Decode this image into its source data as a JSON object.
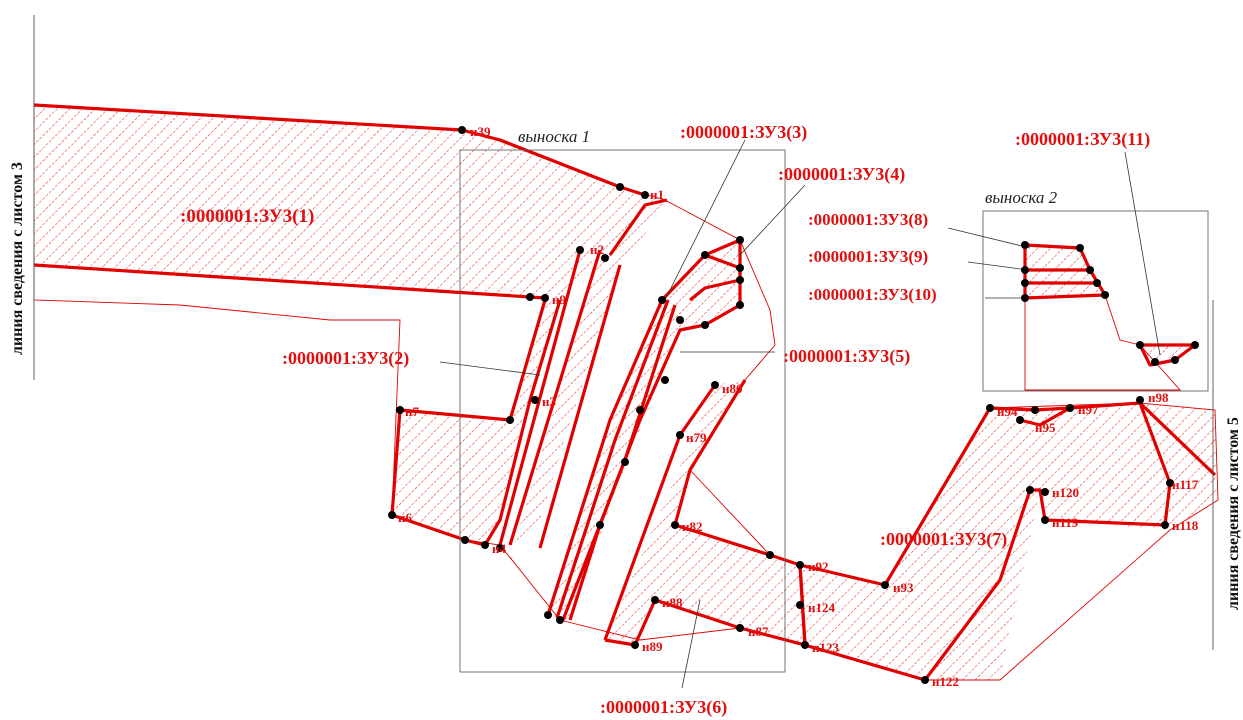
{
  "map": {
    "plots": {
      "zu1": ":0000001:ЗУ3(1)",
      "zu2": ":0000001:ЗУ3(2)",
      "zu3": ":0000001:ЗУ3(3)",
      "zu4": ":0000001:ЗУ3(4)",
      "zu5": ":0000001:ЗУ3(5)",
      "zu6": ":0000001:ЗУ3(6)",
      "zu7": ":0000001:ЗУ3(7)",
      "zu8": ":0000001:ЗУ3(8)",
      "zu9": ":0000001:ЗУ3(9)",
      "zu10": ":0000001:ЗУ3(10)",
      "zu11": ":0000001:ЗУ3(11)"
    },
    "callouts": {
      "c1": "выноска 1",
      "c2": "выноска 2"
    },
    "sheet_links": {
      "left": "линия сведения с листом 3",
      "right": "линия сведения с листом 5"
    },
    "points": {
      "n1": "н1",
      "n2": "н2",
      "n3": "н3",
      "n4": "н4",
      "n6": "н6",
      "n7": "н7",
      "n9": "н9",
      "n39": "н39",
      "n79": "н79",
      "n80": "н80",
      "n82": "н82",
      "n87": "н87",
      "n88": "н88",
      "n89": "н89",
      "n92": "н92",
      "n93": "н93",
      "n94": "н94",
      "n95": "н95",
      "n97": "н97",
      "n98": "н98",
      "n117": "н117",
      "n118": "н118",
      "n119": "н119",
      "n120": "н120",
      "n122": "н122",
      "n123": "н123",
      "n124": "н124"
    },
    "colors": {
      "boundary": "#e00000",
      "hatch_red": "#e83030",
      "hatch_blue": "#1a3fd6"
    }
  }
}
